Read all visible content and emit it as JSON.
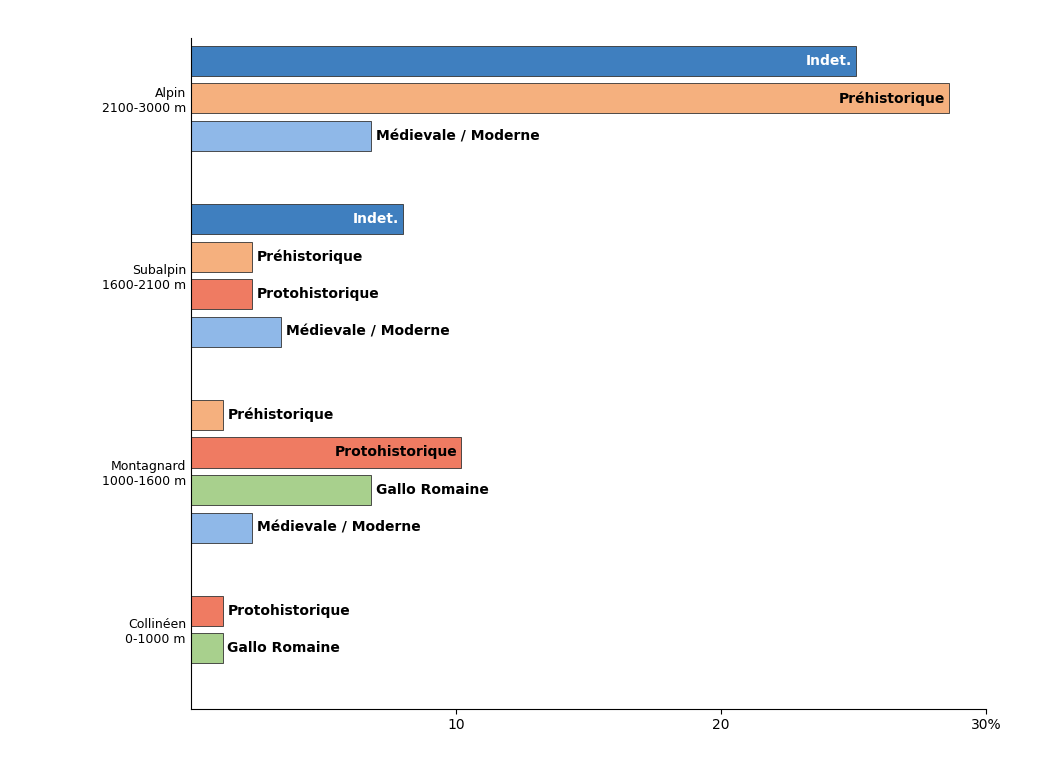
{
  "chart_data": {
    "type": "bar",
    "orientation": "horizontal",
    "categories": [
      "Alpin\n2100-3000 m",
      "Subalpin\n1600-2100 m",
      "Montagnard\n1000-1600 m",
      "Collinéen\n0-1000 m"
    ],
    "series": [
      {
        "name": "Indet.",
        "color": "#3f7fbf",
        "values": [
          25.1,
          8.0,
          null,
          null
        ]
      },
      {
        "name": "Préhistorique",
        "color": "#f5b07e",
        "values": [
          28.6,
          2.3,
          1.2,
          null
        ]
      },
      {
        "name": "Protohistorique",
        "color": "#ef7b62",
        "values": [
          null,
          2.3,
          10.2,
          1.2
        ]
      },
      {
        "name": "Gallo Romaine",
        "color": "#a8d08d",
        "values": [
          null,
          null,
          6.8,
          1.2
        ]
      },
      {
        "name": "Médievale / Moderne",
        "color": "#8fb8e8",
        "values": [
          6.8,
          3.4,
          2.3,
          null
        ]
      }
    ],
    "xlim": [
      0,
      30
    ],
    "xticks": [
      10,
      20,
      {
        "value": 30,
        "label": "30%"
      }
    ],
    "grid": false
  }
}
